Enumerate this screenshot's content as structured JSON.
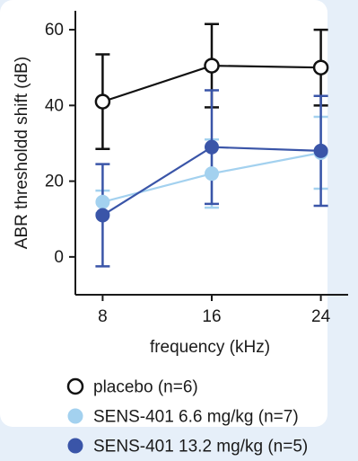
{
  "chart_data": {
    "type": "line",
    "title": "",
    "xlabel": "frequency (kHz)",
    "ylabel": "ABR thresholdd shift (dB)",
    "x": [
      8,
      16,
      24
    ],
    "xticks": [
      "8",
      "16",
      "24"
    ],
    "yticks": [
      "0",
      "20",
      "40",
      "60"
    ],
    "xlim": [
      6,
      26
    ],
    "ylim": [
      -10,
      65
    ],
    "grid": false,
    "legend_position": "bottom-left",
    "series": [
      {
        "name": "placebo (n=6)",
        "marker": "open-circle",
        "color": "#111111",
        "values": [
          41,
          50.5,
          50
        ],
        "error": [
          12.5,
          11,
          10
        ]
      },
      {
        "name": "SENS-401 6.6 mg/kg (n=7)",
        "marker": "filled-circle",
        "color": "#a3d1ef",
        "values": [
          14.5,
          22,
          27.5
        ],
        "error": [
          3,
          9,
          9.5
        ]
      },
      {
        "name": "SENS-401 13.2 mg/kg (n=5)",
        "marker": "filled-circle",
        "color": "#3a55a8",
        "values": [
          11,
          29,
          28
        ],
        "error": [
          13.5,
          15,
          14.5
        ]
      }
    ]
  }
}
